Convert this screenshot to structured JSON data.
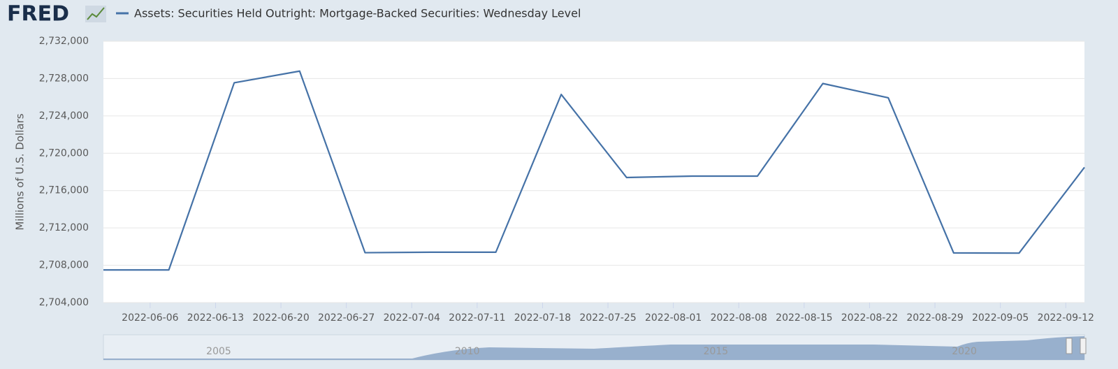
{
  "header": {
    "logo": "FRED"
  },
  "chart_data": {
    "type": "line",
    "ylabel": "Millions of U.S. Dollars",
    "x": [
      "2022-06-01",
      "2022-06-08",
      "2022-06-15",
      "2022-06-22",
      "2022-06-29",
      "2022-07-06",
      "2022-07-13",
      "2022-07-20",
      "2022-07-27",
      "2022-08-03",
      "2022-08-10",
      "2022-08-17",
      "2022-08-24",
      "2022-08-31",
      "2022-09-07",
      "2022-09-14"
    ],
    "series": [
      {
        "name": "Assets: Securities Held Outright: Mortgage-Backed Securities: Wednesday Level",
        "color": "#4572a7",
        "values": [
          2707500,
          2707500,
          2727550,
          2728800,
          2709350,
          2709400,
          2709400,
          2726300,
          2717400,
          2717550,
          2717550,
          2727470,
          2725940,
          2709320,
          2709300,
          2718490
        ]
      }
    ],
    "xlim": [
      "2022-06-01",
      "2022-09-14"
    ],
    "xticks": [
      "2022-06-06",
      "2022-06-13",
      "2022-06-20",
      "2022-06-27",
      "2022-07-04",
      "2022-07-11",
      "2022-07-18",
      "2022-07-25",
      "2022-08-01",
      "2022-08-08",
      "2022-08-15",
      "2022-08-22",
      "2022-08-29",
      "2022-09-05",
      "2022-09-12"
    ],
    "ylim": [
      2704000,
      2732000
    ],
    "yticks": [
      {
        "value": 2704000,
        "label": "2,704,000"
      },
      {
        "value": 2708000,
        "label": "2,708,000"
      },
      {
        "value": 2712000,
        "label": "2,712,000"
      },
      {
        "value": 2716000,
        "label": "2,716,000"
      },
      {
        "value": 2720000,
        "label": "2,720,000"
      },
      {
        "value": 2724000,
        "label": "2,724,000"
      },
      {
        "value": 2728000,
        "label": "2,728,000"
      },
      {
        "value": 2732000,
        "label": "2,732,000"
      }
    ],
    "grid": true
  },
  "navigator": {
    "labels": [
      "2005",
      "2010",
      "2015",
      "2020"
    ]
  }
}
